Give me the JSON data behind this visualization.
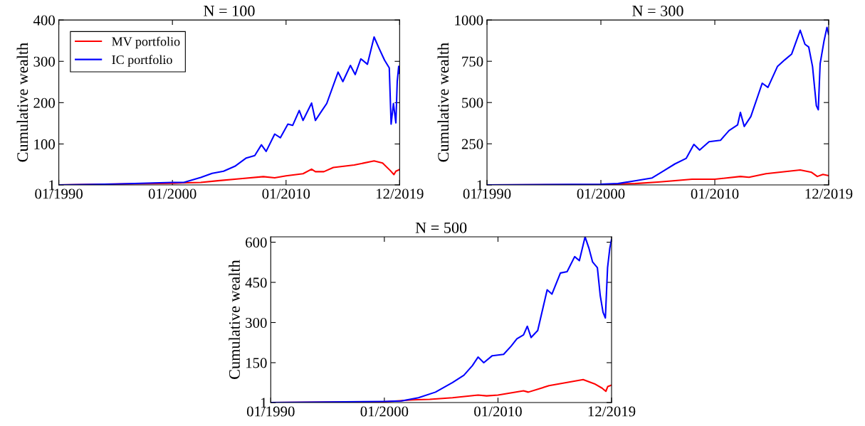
{
  "chart_data": [
    {
      "type": "line",
      "title": "N = 100",
      "ylabel": "Cumulative wealth",
      "xlim": [
        "1990-01-01",
        "2019-12-31"
      ],
      "xticks": [
        {
          "value": "1990-01-01",
          "label": "01/1990"
        },
        {
          "value": "2000-01-01",
          "label": "01/2000"
        },
        {
          "value": "2010-01-01",
          "label": "01/2010"
        },
        {
          "value": "2019-12-31",
          "label": "12/2019"
        }
      ],
      "ylim": [
        1,
        400
      ],
      "yticks": [
        1,
        100,
        200,
        300,
        400
      ],
      "grid": false,
      "legend": "top left",
      "series": [
        {
          "name": "MV portfolio",
          "color": "#ff0000",
          "x": [
            "1990-01-01",
            "2000-01-01",
            "2002-07-01",
            "2004-01-01",
            "2006-01-01",
            "2008-01-01",
            "2009-01-01",
            "2010-01-01",
            "2011-07-01",
            "2012-04-01",
            "2012-08-01",
            "2013-05-01",
            "2014-03-01",
            "2016-01-01",
            "2017-10-01",
            "2018-07-01",
            "2019-03-01",
            "2019-07-01",
            "2019-09-01",
            "2019-12-28"
          ],
          "values": [
            1,
            5,
            7,
            11,
            16,
            21,
            18,
            23,
            28,
            39,
            33,
            33,
            43,
            49,
            59,
            54,
            36,
            26,
            34,
            38
          ]
        },
        {
          "name": "IC portfolio",
          "color": "#0000ff",
          "x": [
            "1990-01-01",
            "1995-01-01",
            "2000-01-01",
            "2001-01-01",
            "2002-07-01",
            "2003-07-01",
            "2004-07-01",
            "2005-07-01",
            "2006-07-01",
            "2007-04-01",
            "2007-11-01",
            "2008-04-01",
            "2009-01-01",
            "2009-07-01",
            "2010-03-01",
            "2010-08-01",
            "2011-03-01",
            "2011-07-01",
            "2012-04-01",
            "2012-08-01",
            "2013-03-01",
            "2013-08-01",
            "2014-08-01",
            "2015-01-01",
            "2015-09-01",
            "2016-02-01",
            "2016-08-01",
            "2017-03-01",
            "2017-10-01",
            "2018-03-01",
            "2018-09-01",
            "2019-02-01",
            "2019-04-01",
            "2019-06-15",
            "2019-09-01",
            "2019-10-15",
            "2019-12-01",
            "2019-12-28"
          ],
          "values": [
            1,
            3,
            7,
            7,
            19,
            29,
            34,
            46,
            66,
            72,
            98,
            82,
            124,
            115,
            148,
            145,
            181,
            157,
            199,
            157,
            181,
            198,
            274,
            251,
            290,
            268,
            306,
            293,
            359,
            333,
            303,
            284,
            148,
            198,
            151,
            251,
            288,
            271
          ]
        }
      ]
    },
    {
      "type": "line",
      "title": "N = 300",
      "ylabel": "Cumulative wealth",
      "xlim": [
        "1990-01-01",
        "2019-12-31"
      ],
      "xticks": [
        {
          "value": "1990-01-01",
          "label": "01/1990"
        },
        {
          "value": "2000-01-01",
          "label": "01/2000"
        },
        {
          "value": "2010-01-01",
          "label": "01/2010"
        },
        {
          "value": "2019-12-31",
          "label": "12/2019"
        }
      ],
      "ylim": [
        1,
        1000
      ],
      "yticks": [
        1,
        250,
        500,
        750,
        1000
      ],
      "grid": false,
      "legend": false,
      "series": [
        {
          "color": "#ff0000",
          "x": [
            "1990-01-01",
            "2000-01-01",
            "2003-01-01",
            "2005-01-01",
            "2008-01-01",
            "2010-01-01",
            "2012-04-01",
            "2013-01-01",
            "2014-07-01",
            "2017-07-01",
            "2018-07-01",
            "2019-01-01",
            "2019-07-01",
            "2019-12-28"
          ],
          "values": [
            1,
            3,
            9,
            18,
            35,
            35,
            52,
            47,
            69,
            91,
            77,
            52,
            64,
            57
          ]
        },
        {
          "color": "#0000ff",
          "x": [
            "1990-01-01",
            "2000-01-01",
            "2001-07-01",
            "2003-01-01",
            "2004-07-01",
            "2005-07-01",
            "2006-07-01",
            "2007-07-01",
            "2008-03-01",
            "2008-09-01",
            "2009-07-01",
            "2010-07-01",
            "2011-04-01",
            "2012-01-01",
            "2012-04-01",
            "2012-08-01",
            "2013-03-01",
            "2014-03-01",
            "2014-09-01",
            "2015-07-01",
            "2016-03-01",
            "2016-10-01",
            "2017-07-01",
            "2017-12-01",
            "2018-04-01",
            "2018-08-01",
            "2018-12-01",
            "2019-02-01",
            "2019-04-01",
            "2019-08-01",
            "2019-11-05",
            "2019-12-28"
          ],
          "values": [
            1,
            5,
            9,
            26,
            43,
            85,
            128,
            162,
            246,
            212,
            263,
            271,
            330,
            364,
            440,
            355,
            415,
            617,
            592,
            718,
            760,
            794,
            938,
            853,
            836,
            718,
            481,
            456,
            735,
            870,
            955,
            913
          ]
        }
      ]
    },
    {
      "type": "line",
      "title": "N = 500",
      "ylabel": "Cumulative wealth",
      "xlim": [
        "1990-01-01",
        "2019-12-31"
      ],
      "xticks": [
        {
          "value": "1990-01-01",
          "label": "01/1990"
        },
        {
          "value": "2000-01-01",
          "label": "01/2000"
        },
        {
          "value": "2010-01-01",
          "label": "01/2010"
        },
        {
          "value": "2019-12-31",
          "label": "12/2019"
        }
      ],
      "ylim": [
        1,
        620
      ],
      "yticks": [
        1,
        150,
        300,
        450,
        600
      ],
      "grid": false,
      "legend": false,
      "series": [
        {
          "color": "#ff0000",
          "x": [
            "1990-01-01",
            "2000-01-01",
            "2002-07-01",
            "2004-01-01",
            "2006-01-01",
            "2008-04-01",
            "2009-01-01",
            "2010-01-01",
            "2012-04-01",
            "2012-09-01",
            "2014-07-01",
            "2017-07-01",
            "2018-07-01",
            "2019-03-01",
            "2019-07-01",
            "2019-09-01",
            "2019-12-28"
          ],
          "values": [
            1,
            4,
            11,
            13,
            19,
            29,
            26,
            29,
            45,
            40,
            64,
            87,
            71,
            55,
            43,
            61,
            66
          ]
        },
        {
          "color": "#0000ff",
          "x": [
            "1990-01-01",
            "2000-01-01",
            "2001-07-01",
            "2003-01-01",
            "2004-07-01",
            "2006-01-01",
            "2007-01-01",
            "2007-10-01",
            "2008-04-01",
            "2008-10-01",
            "2009-07-01",
            "2010-07-01",
            "2011-03-01",
            "2011-09-01",
            "2012-04-01",
            "2012-08-01",
            "2012-12-01",
            "2013-07-01",
            "2014-05-01",
            "2014-10-01",
            "2015-07-01",
            "2016-02-01",
            "2016-10-01",
            "2017-03-01",
            "2017-09-01",
            "2018-01-01",
            "2018-05-01",
            "2018-10-01",
            "2019-01-01",
            "2019-04-01",
            "2019-06-15",
            "2019-08-25",
            "2019-11-05",
            "2019-12-28"
          ],
          "values": [
            1,
            5,
            7,
            19,
            40,
            76,
            103,
            139,
            171,
            150,
            176,
            181,
            212,
            239,
            254,
            286,
            244,
            270,
            422,
            406,
            485,
            490,
            546,
            531,
            620,
            578,
            526,
            505,
            401,
            338,
            317,
            505,
            578,
            609
          ]
        }
      ]
    }
  ]
}
